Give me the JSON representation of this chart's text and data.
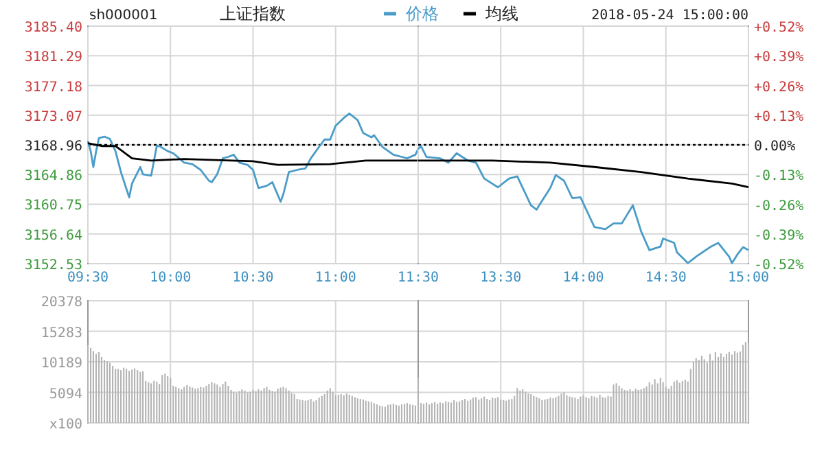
{
  "chart_data": [
    {
      "type": "line",
      "title": "上证指数",
      "annotations": [
        "sh000001"
      ],
      "grid": true,
      "ref_lines": [
        {
          "axis": "y",
          "value": 3168.96,
          "line_style": "dotted",
          "color": "#000000"
        }
      ],
      "xlim": [
        9.5,
        11.5
      ],
      "xticks": [
        {
          "value": 9.5,
          "label": "09:30"
        },
        {
          "value": 10,
          "label": "10:00"
        },
        {
          "value": 10.5,
          "label": "10:30"
        },
        {
          "value": 11,
          "label": "11:00"
        },
        {
          "value": 11.5,
          "label": "11:30"
        }
      ],
      "ylim": [
        3152.53,
        3185.4
      ],
      "yticks": [
        3152.53,
        3156.64,
        3160.75,
        3164.86,
        3168.96,
        3173.07,
        3177.18,
        3181.29,
        {
          "value": 3185.4,
          "label": "3185.40"
        }
      ],
      "series": [
        {
          "color": "#4a9cc8",
          "x": [
            9.5,
            9.517,
            9.533,
            9.55,
            9.567,
            9.6,
            9.633,
            9.667,
            9.7,
            9.75,
            9.767,
            9.817,
            9.833,
            9.883,
            9.917,
            9.933,
            9.983,
            10.017,
            10.083,
            10.133,
            10.183,
            10.233,
            10.25,
            10.283,
            10.317,
            10.35,
            10.383,
            10.417,
            10.467,
            10.5,
            10.533,
            10.583,
            10.617,
            10.667,
            10.683,
            10.717,
            10.767,
            10.817,
            10.85,
            10.9,
            10.933,
            10.967,
            11.0,
            11.05,
            11.083,
            11.133,
            11.167,
            11.217,
            11.233,
            11.283,
            11.35,
            11.4,
            11.433,
            11.483,
            11.5
          ],
          "values": [
            3169.5,
            3168.1,
            3165.9,
            3168.1,
            3169.9,
            3170.1,
            3169.8,
            3168.1,
            3165.2,
            3161.7,
            3163.6,
            3165.9,
            3164.9,
            3164.7,
            3168.8,
            3168.8,
            3168.1,
            3167.8,
            3166.5,
            3166.3,
            3165.5,
            3164.0,
            3163.8,
            3164.9,
            3167.1,
            3167.3,
            3167.6,
            3166.5,
            3166.2,
            3165.5,
            3163.0,
            3163.3,
            3163.8,
            3161.1,
            3162.1,
            3165.2,
            3165.5,
            3165.7,
            3167.1,
            3168.7,
            3169.7,
            3169.7,
            3171.6,
            3172.7,
            3173.3,
            3172.4,
            3170.6,
            3170.0,
            3170.3,
            3168.7,
            3167.6,
            3167.3,
            3167.1,
            3167.6,
            3168.4
          ]
        },
        {
          "color": "#000000",
          "x": [
            9.5,
            9.583,
            9.667,
            9.767,
            9.883,
            10.083,
            10.5,
            10.65,
            10.967,
            11.183,
            11.467,
            11.5
          ],
          "values": [
            3169.2,
            3168.8,
            3168.8,
            3167.1,
            3166.8,
            3167.0,
            3166.7,
            3166.2,
            3166.3,
            3166.8,
            3166.8,
            3166.8
          ]
        }
      ]
    },
    {
      "type": "line",
      "annotations": [
        "2018-05-24 15:00:00"
      ],
      "legend": "top",
      "grid": true,
      "tick_labels": "x",
      "ref_lines": [
        {
          "axis": "y",
          "value": 3168.96,
          "line_style": "dotted",
          "color": "#000000"
        }
      ],
      "xlim": [
        13,
        15
      ],
      "xticks": [
        {
          "value": 13,
          "label": null
        },
        {
          "value": 13.5,
          "label": "13:30"
        },
        {
          "value": 14,
          "label": "14:00"
        },
        {
          "value": 14.5,
          "label": "14:30"
        },
        {
          "value": 15,
          "label": "15:00"
        }
      ],
      "ylim": [
        3152.53,
        3185.4
      ],
      "yticks": [
        3152.53,
        3156.64,
        3160.75,
        3164.86,
        3168.96,
        3173.07,
        3177.18,
        3181.29,
        3185.4
      ],
      "y2lim": [
        -0.52,
        0.52
      ],
      "y2ticks": [
        {
          "value": -0.52,
          "label": "-0.52%"
        },
        {
          "value": -0.39,
          "label": "-0.39%"
        },
        {
          "value": -0.26,
          "label": "-0.26%"
        },
        {
          "value": -0.13,
          "label": "-0.13%"
        },
        {
          "value": 0,
          "label": "0.00%"
        },
        {
          "value": 0.13,
          "label": "+0.13%"
        },
        {
          "value": 0.26,
          "label": "+0.26%"
        },
        {
          "value": 0.39,
          "label": "+0.39%"
        },
        {
          "value": 0.52,
          "label": "+0.52%"
        }
      ],
      "series": [
        {
          "name": "价格",
          "color": "#4a9cc8",
          "x": [
            13.0,
            13.017,
            13.05,
            13.133,
            13.183,
            13.233,
            13.3,
            13.35,
            13.4,
            13.483,
            13.55,
            13.6,
            13.683,
            13.717,
            13.733,
            13.8,
            13.833,
            13.883,
            13.933,
            13.983,
            14.067,
            14.133,
            14.183,
            14.233,
            14.3,
            14.35,
            14.4,
            14.467,
            14.483,
            14.55,
            14.567,
            14.633,
            14.683,
            14.767,
            14.817,
            14.883,
            14.9,
            14.933,
            14.967,
            15.0
          ],
          "values": [
            3168.4,
            3168.8,
            3167.3,
            3167.1,
            3166.5,
            3167.8,
            3166.8,
            3166.5,
            3164.3,
            3163.1,
            3164.3,
            3164.6,
            3160.6,
            3160.0,
            3160.6,
            3163.0,
            3164.8,
            3164.0,
            3161.6,
            3161.7,
            3157.6,
            3157.3,
            3158.1,
            3158.1,
            3160.6,
            3157.0,
            3154.4,
            3154.9,
            3156.0,
            3155.4,
            3154.1,
            3152.6,
            3153.5,
            3154.8,
            3155.4,
            3153.5,
            3152.6,
            3153.8,
            3154.8,
            3154.4
          ]
        },
        {
          "name": "均线",
          "color": "#000000",
          "x": [
            13.0,
            13.45,
            13.8,
            14.067,
            14.35,
            14.633,
            14.9,
            15.0
          ],
          "values": [
            3166.8,
            3166.8,
            3166.5,
            3165.9,
            3165.2,
            3164.3,
            3163.6,
            3163.1
          ]
        }
      ]
    },
    {
      "type": "bar",
      "grid": true,
      "tick_labels": "y",
      "color": "#b4b4b4",
      "xlim": [
        9.5,
        11.5
      ],
      "xticks": [
        10,
        10.5,
        11
      ],
      "ylim": [
        0,
        20378
      ],
      "yticks": [
        {
          "value": 0,
          "label": "x100"
        },
        5094,
        10189,
        15283,
        20378
      ],
      "x": [
        9.5,
        9.517,
        9.533,
        9.55,
        9.567,
        9.583,
        9.6,
        9.617,
        9.633,
        9.65,
        9.667,
        9.683,
        9.7,
        9.717,
        9.733,
        9.75,
        9.767,
        9.783,
        9.8,
        9.817,
        9.833,
        9.85,
        9.867,
        9.883,
        9.9,
        9.917,
        9.933,
        9.95,
        9.967,
        9.983,
        10.0,
        10.017,
        10.033,
        10.05,
        10.067,
        10.083,
        10.1,
        10.117,
        10.133,
        10.15,
        10.167,
        10.183,
        10.2,
        10.217,
        10.233,
        10.25,
        10.267,
        10.283,
        10.3,
        10.317,
        10.333,
        10.35,
        10.367,
        10.383,
        10.4,
        10.417,
        10.433,
        10.45,
        10.467,
        10.483,
        10.5,
        10.517,
        10.533,
        10.55,
        10.567,
        10.583,
        10.6,
        10.617,
        10.633,
        10.65,
        10.667,
        10.683,
        10.7,
        10.717,
        10.733,
        10.75,
        10.767,
        10.783,
        10.8,
        10.817,
        10.833,
        10.85,
        10.867,
        10.883,
        10.9,
        10.917,
        10.933,
        10.95,
        10.967,
        10.983,
        11.0,
        11.017,
        11.033,
        11.05,
        11.067,
        11.083,
        11.1,
        11.117,
        11.133,
        11.15,
        11.167,
        11.183,
        11.2,
        11.217,
        11.233,
        11.25,
        11.267,
        11.283,
        11.3,
        11.317,
        11.333,
        11.35,
        11.367,
        11.383,
        11.4,
        11.417,
        11.433,
        11.45,
        11.467,
        11.483
      ],
      "values": [
        13000,
        12500,
        12000,
        11500,
        11800,
        11000,
        10500,
        10300,
        10000,
        9500,
        9000,
        9000,
        8800,
        9200,
        9000,
        8700,
        8900,
        9100,
        8800,
        8500,
        8600,
        7000,
        6800,
        6600,
        7000,
        6900,
        6500,
        8000,
        8200,
        7800,
        7500,
        6200,
        6000,
        5800,
        5600,
        6000,
        6300,
        6100,
        5900,
        5700,
        5800,
        6000,
        5900,
        6200,
        6500,
        6800,
        6600,
        6400,
        6000,
        6500,
        6900,
        6200,
        5500,
        5200,
        5000,
        5300,
        5600,
        5400,
        5100,
        5200,
        5500,
        5300,
        5600,
        5400,
        5800,
        6000,
        5500,
        5300,
        5200,
        5700,
        5900,
        6000,
        5800,
        5400,
        5000,
        4800,
        4000,
        3900,
        3800,
        3700,
        3800,
        4000,
        3600,
        3800,
        4200,
        4500,
        4800,
        5400,
        5800,
        5200,
        4600,
        4700,
        4800,
        4600,
        4900,
        4700,
        4500,
        4300,
        4100,
        4000,
        3900,
        3700,
        3600,
        3500,
        3300,
        3100,
        2900,
        2800,
        2700,
        3000,
        3100,
        3200,
        3000,
        2900,
        3100,
        3200,
        3300,
        3100,
        3000,
        2900
      ]
    },
    {
      "type": "bar",
      "grid": true,
      "tick_labels": false,
      "color": "#b4b4b4",
      "xlim": [
        13,
        15
      ],
      "xticks": [
        13.5,
        14,
        14.5
      ],
      "ylim": [
        0,
        20378
      ],
      "yticks": [
        0,
        5094,
        10189,
        15283,
        20378
      ],
      "x": [
        13.0,
        13.017,
        13.033,
        13.05,
        13.067,
        13.083,
        13.1,
        13.117,
        13.133,
        13.15,
        13.167,
        13.183,
        13.2,
        13.217,
        13.233,
        13.25,
        13.267,
        13.283,
        13.3,
        13.317,
        13.333,
        13.35,
        13.367,
        13.383,
        13.4,
        13.417,
        13.433,
        13.45,
        13.467,
        13.483,
        13.5,
        13.517,
        13.533,
        13.55,
        13.567,
        13.583,
        13.6,
        13.617,
        13.633,
        13.65,
        13.667,
        13.683,
        13.7,
        13.717,
        13.733,
        13.75,
        13.767,
        13.783,
        13.8,
        13.817,
        13.833,
        13.85,
        13.867,
        13.883,
        13.9,
        13.917,
        13.933,
        13.95,
        13.967,
        13.983,
        14.0,
        14.017,
        14.033,
        14.05,
        14.067,
        14.083,
        14.1,
        14.117,
        14.133,
        14.15,
        14.167,
        14.183,
        14.2,
        14.217,
        14.233,
        14.25,
        14.267,
        14.283,
        14.3,
        14.317,
        14.333,
        14.35,
        14.367,
        14.383,
        14.4,
        14.417,
        14.433,
        14.45,
        14.467,
        14.483,
        14.5,
        14.517,
        14.533,
        14.55,
        14.567,
        14.583,
        14.6,
        14.617,
        14.633,
        14.65,
        14.667,
        14.683,
        14.7,
        14.717,
        14.733,
        14.75,
        14.767,
        14.783,
        14.8,
        14.817,
        14.833,
        14.85,
        14.867,
        14.883,
        14.9,
        14.917,
        14.933,
        14.95,
        14.967,
        14.983,
        15.0
      ],
      "values": [
        7600,
        3300,
        3200,
        3400,
        3100,
        3300,
        3500,
        3200,
        3400,
        3300,
        3600,
        3500,
        3400,
        3800,
        3500,
        3600,
        3800,
        4000,
        3700,
        3900,
        4200,
        4300,
        3900,
        4100,
        4400,
        4000,
        3800,
        4200,
        4100,
        4300,
        3900,
        3800,
        3700,
        3900,
        4000,
        4500,
        5800,
        5400,
        5600,
        5200,
        4900,
        4800,
        4500,
        4300,
        4100,
        3800,
        3900,
        4000,
        4200,
        4100,
        4300,
        4500,
        4900,
        5100,
        4600,
        4400,
        4300,
        4200,
        4000,
        4400,
        4600,
        4300,
        4100,
        4500,
        4400,
        4200,
        4700,
        4300,
        4200,
        4500,
        4400,
        6400,
        6600,
        6200,
        5800,
        5500,
        5400,
        5600,
        5300,
        5700,
        5500,
        5600,
        5800,
        6100,
        6800,
        6400,
        7300,
        6600,
        7500,
        6800,
        6000,
        5700,
        6200,
        6900,
        7100,
        6700,
        7000,
        7200,
        6900,
        9000,
        10200,
        10800,
        10500,
        11200,
        10600,
        10000,
        11500,
        10400,
        11800,
        11000,
        11600,
        11000,
        11500,
        11800,
        11400,
        12000,
        11700,
        11900,
        13000,
        13500,
        13300
      ]
    }
  ]
}
